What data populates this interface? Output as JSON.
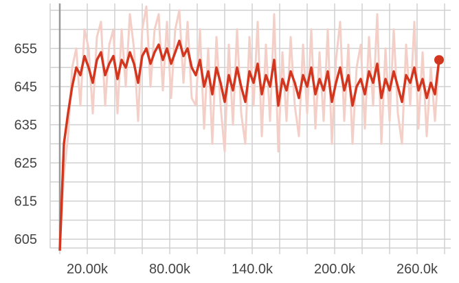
{
  "chart_data": {
    "type": "line",
    "title": "",
    "xlabel": "",
    "ylabel": "",
    "xlim": [
      -7,
      285
    ],
    "ylim": [
      602.7,
      666.8
    ],
    "grid": true,
    "x_gridlines_every": 20,
    "y_gridlines_every": 5,
    "x_tick_values": [
      20,
      80,
      140,
      200,
      260
    ],
    "x_tick_labels": [
      "20.00k",
      "80.00k",
      "140.0k",
      "200.0k",
      "260.0k"
    ],
    "y_tick_values": [
      605,
      615,
      625,
      635,
      645,
      655
    ],
    "y_tick_labels": [
      "605",
      "615",
      "625",
      "635",
      "645",
      "655"
    ],
    "colors": {
      "smoothed": "#d2361e",
      "raw": "#f3cfc8",
      "grid": "#d0d0d0",
      "marker_line": "#999999"
    },
    "x": [
      0,
      3,
      6,
      9,
      12,
      15,
      18,
      21,
      24,
      27,
      30,
      33,
      36,
      39,
      42,
      45,
      48,
      51,
      54,
      57,
      60,
      63,
      66,
      69,
      72,
      75,
      78,
      81,
      84,
      87,
      90,
      93,
      96,
      99,
      102,
      105,
      108,
      111,
      114,
      117,
      120,
      123,
      126,
      129,
      132,
      135,
      138,
      141,
      144,
      147,
      150,
      153,
      156,
      159,
      162,
      165,
      168,
      171,
      174,
      177,
      180,
      183,
      186,
      189,
      192,
      195,
      198,
      201,
      204,
      207,
      210,
      213,
      216,
      219,
      222,
      225,
      228,
      231,
      234,
      237,
      240,
      243,
      246,
      249,
      252,
      255,
      258,
      261,
      264,
      267,
      270,
      273,
      276
    ],
    "series": [
      {
        "role": "raw",
        "values": [
          602,
          622,
          632,
          650,
          655,
          640,
          660,
          655,
          638,
          658,
          662,
          640,
          656,
          660,
          638,
          660,
          645,
          664,
          655,
          636,
          660,
          666,
          645,
          660,
          664,
          644,
          662,
          642,
          660,
          665,
          646,
          662,
          642,
          640,
          660,
          634,
          655,
          630,
          658,
          640,
          628,
          656,
          635,
          660,
          638,
          630,
          658,
          640,
          662,
          632,
          656,
          636,
          664,
          628,
          654,
          636,
          658,
          640,
          632,
          656,
          638,
          660,
          634,
          654,
          636,
          660,
          630,
          652,
          662,
          636,
          656,
          630,
          650,
          656,
          634,
          658,
          640,
          664,
          630,
          655,
          636,
          660,
          638,
          630,
          656,
          640,
          662,
          634,
          654,
          632,
          650,
          636,
          652
        ]
      },
      {
        "role": "smoothed",
        "values": [
          602,
          630,
          638,
          645,
          650,
          648,
          653,
          650,
          646,
          652,
          654,
          648,
          651,
          653,
          647,
          652,
          650,
          654,
          651,
          646,
          653,
          655,
          651,
          654,
          656,
          652,
          655,
          651,
          654,
          657,
          653,
          655,
          650,
          648,
          652,
          645,
          649,
          643,
          650,
          646,
          641,
          648,
          644,
          650,
          645,
          641,
          649,
          646,
          651,
          643,
          648,
          645,
          652,
          640,
          647,
          644,
          649,
          646,
          642,
          648,
          645,
          650,
          643,
          647,
          644,
          649,
          641,
          646,
          650,
          644,
          648,
          640,
          645,
          647,
          643,
          649,
          646,
          651,
          642,
          647,
          644,
          649,
          645,
          641,
          648,
          646,
          650,
          644,
          647,
          642,
          646,
          643,
          652
        ]
      }
    ]
  }
}
